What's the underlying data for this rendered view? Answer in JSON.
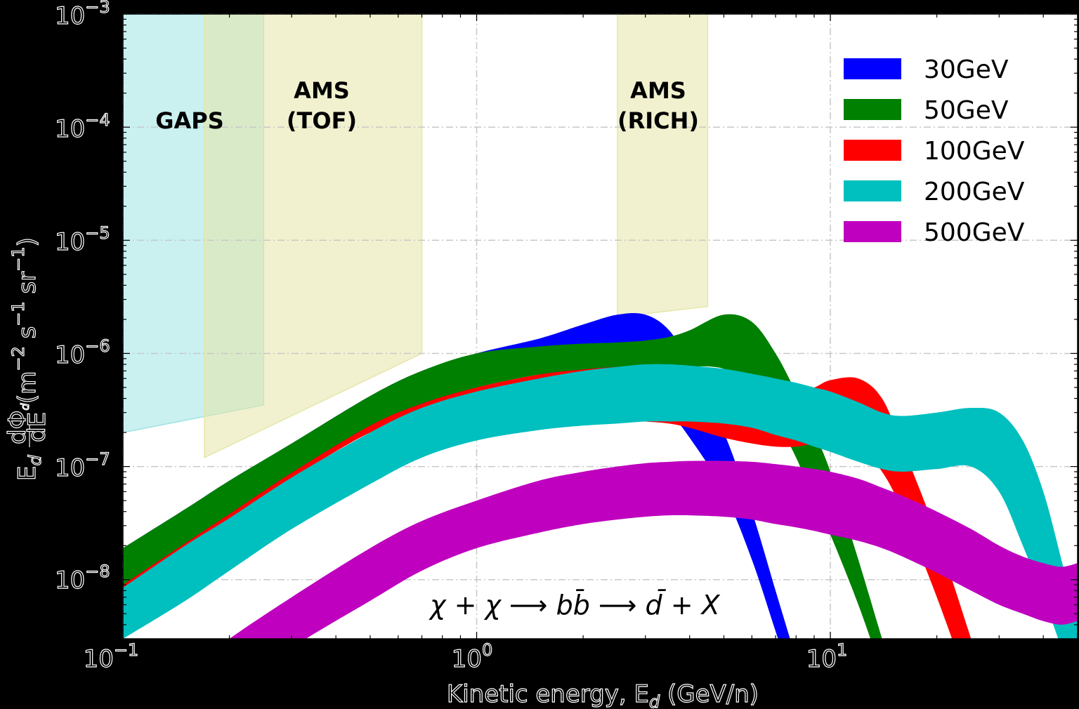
{
  "chart_data": {
    "type": "area",
    "title": "",
    "xlabel": "Kinetic energy, E_d (GeV/n)",
    "ylabel": "E_d dΦ_d/dE (m^-2 s^-1 sr^-1)",
    "xscale": "log",
    "yscale": "log",
    "xlim": [
      0.1,
      50
    ],
    "ylim": [
      3e-09,
      0.001
    ],
    "grid": true,
    "grid_style": "dash-dot",
    "legend_position": "upper right",
    "x_ticks": [
      "10^-1",
      "10^0",
      "10^1"
    ],
    "y_ticks": [
      "10^-8",
      "10^-7",
      "10^-6",
      "10^-5",
      "10^-4",
      "10^-3"
    ],
    "annotation": "χ + χ ⟶ b b̄ ⟶ d̄ + X",
    "regions": [
      {
        "name": "GAPS",
        "label_lines": [
          "GAPS"
        ],
        "color": "#9fe3e3",
        "x": [
          0.1,
          0.25
        ],
        "y_bottom": [
          2e-07,
          3.5e-07
        ]
      },
      {
        "name": "AMS (TOF)",
        "label_lines": [
          "AMS",
          "(TOF)"
        ],
        "color": "#e6e6a8",
        "x": [
          0.17,
          0.7
        ],
        "y_bottom": [
          1.2e-07,
          1e-06
        ]
      },
      {
        "name": "AMS (RICH)",
        "label_lines": [
          "AMS",
          "(RICH)"
        ],
        "color": "#e6e6a8",
        "x": [
          2.5,
          4.5
        ],
        "y_bottom": [
          2.1e-06,
          2.6e-06
        ]
      }
    ],
    "x": [
      0.1,
      0.15,
      0.2,
      0.3,
      0.5,
      0.7,
      1.0,
      1.5,
      2.0,
      2.5,
      3.0,
      3.5,
      4.0,
      5.0,
      6.0,
      7.0,
      8.0,
      9.0,
      10.0,
      12.0,
      14.0,
      16.0,
      20.0,
      25.0,
      30.0,
      35.0,
      40.0,
      45.0,
      50.0
    ],
    "series": [
      {
        "name": "30GeV",
        "color": "#0000ff",
        "upper": [
          1.9e-08,
          4.2e-08,
          7.5e-08,
          1.6e-07,
          4.2e-07,
          7e-07,
          1e-06,
          1.35e-06,
          1.8e-06,
          2.2e-06,
          2.2e-06,
          1.6e-06,
          8e-07,
          2e-07,
          4e-08,
          8e-09,
          2e-09,
          null,
          null,
          null,
          null,
          null,
          null,
          null,
          null,
          null,
          null,
          null,
          null
        ],
        "lower": [
          8e-09,
          1.9e-08,
          3.5e-08,
          8.5e-08,
          2.2e-07,
          3.5e-07,
          5e-07,
          6.5e-07,
          6.3e-07,
          5.5e-07,
          4.3e-07,
          3e-07,
          1.8e-07,
          6e-08,
          1.5e-08,
          3.5e-09,
          1e-09,
          null,
          null,
          null,
          null,
          null,
          null,
          null,
          null,
          null,
          null,
          null,
          null
        ]
      },
      {
        "name": "50GeV",
        "color": "#008000",
        "upper": [
          1.9e-08,
          4.2e-08,
          7.5e-08,
          1.6e-07,
          4.2e-07,
          7e-07,
          1e-06,
          1.15e-06,
          1.22e-06,
          1.25e-06,
          1.3e-06,
          1.4e-06,
          1.6e-06,
          2.2e-06,
          1.9e-06,
          1e-06,
          4.5e-07,
          2e-07,
          9e-08,
          1.5e-08,
          3e-09,
          null,
          null,
          null,
          null,
          null,
          null,
          null,
          null
        ],
        "lower": [
          9e-09,
          2.1e-08,
          3.8e-08,
          8.8e-08,
          2.3e-07,
          3.6e-07,
          5e-07,
          6.5e-07,
          7.2e-07,
          7.6e-07,
          7.8e-07,
          7.8e-07,
          7.7e-07,
          7.3e-07,
          5e-07,
          2.6e-07,
          1.2e-07,
          5e-08,
          2.5e-08,
          6e-09,
          1.5e-09,
          null,
          null,
          null,
          null,
          null,
          null,
          null,
          null
        ]
      },
      {
        "name": "100GeV",
        "color": "#ff0000",
        "upper": [
          9e-09,
          2.1e-08,
          3.8e-08,
          8.8e-08,
          2.3e-07,
          3.6e-07,
          5e-07,
          6.5e-07,
          7.2e-07,
          7.6e-07,
          7.8e-07,
          7.8e-07,
          7.7e-07,
          7e-07,
          6.2e-07,
          5.2e-07,
          4.6e-07,
          5e-07,
          5.8e-07,
          6e-07,
          4e-07,
          1.5e-07,
          2.5e-08,
          3e-09,
          null,
          null,
          null,
          null,
          null
        ],
        "lower": [
          7.5e-09,
          1.8e-08,
          3.3e-08,
          7.8e-08,
          2e-07,
          2.7e-07,
          3.3e-07,
          3.1e-07,
          2.8e-07,
          2.6e-07,
          2.5e-07,
          2.4e-07,
          2.2e-07,
          1.8e-07,
          1.6e-07,
          1.5e-07,
          1.5e-07,
          1.6e-07,
          1.7e-07,
          1.5e-07,
          9e-08,
          4e-08,
          7e-09,
          1e-09,
          null,
          null,
          null,
          null,
          null
        ]
      },
      {
        "name": "200GeV",
        "color": "#00bfbf",
        "upper": [
          8.5e-09,
          2e-08,
          3.5e-08,
          8e-08,
          2e-07,
          3.3e-07,
          4.6e-07,
          6e-07,
          7e-07,
          7.6e-07,
          8e-07,
          8e-07,
          7.8e-07,
          7.3e-07,
          6.6e-07,
          6e-07,
          5.5e-07,
          5e-07,
          4.6e-07,
          3.7e-07,
          3e-07,
          2.8e-07,
          3e-07,
          3.3e-07,
          3e-07,
          1.7e-07,
          6e-08,
          1.5e-08,
          4e-09
        ],
        "lower": [
          3e-09,
          6.5e-09,
          1.2e-08,
          2.8e-08,
          7e-08,
          1.2e-07,
          1.7e-07,
          2.1e-07,
          2.3e-07,
          2.4e-07,
          2.5e-07,
          2.5e-07,
          2.5e-07,
          2.4e-07,
          2.2e-07,
          1.9e-07,
          1.7e-07,
          1.5e-07,
          1.35e-07,
          1.1e-07,
          9.5e-08,
          9e-08,
          9.5e-08,
          1e-07,
          6e-08,
          2e-08,
          7e-09,
          2.5e-09,
          1e-09
        ]
      },
      {
        "name": "500GeV",
        "color": "#bf00bf",
        "upper": [
          null,
          1.5e-09,
          3e-09,
          7e-09,
          1.9e-08,
          3.3e-08,
          5e-08,
          7.5e-08,
          9e-08,
          1e-07,
          1.07e-07,
          1.1e-07,
          1.12e-07,
          1.12e-07,
          1.1e-07,
          1.05e-07,
          1e-07,
          9.5e-08,
          9e-08,
          7.8e-08,
          6.5e-08,
          5.5e-08,
          4e-08,
          2.8e-08,
          2e-08,
          1.6e-08,
          1.4e-08,
          1.3e-08,
          1.4e-08
        ],
        "lower": [
          null,
          null,
          1e-09,
          2.5e-09,
          6.5e-09,
          1.2e-08,
          1.9e-08,
          2.6e-08,
          3.1e-08,
          3.4e-08,
          3.6e-08,
          3.7e-08,
          3.7e-08,
          3.6e-08,
          3.4e-08,
          3.1e-08,
          2.9e-08,
          2.7e-08,
          2.5e-08,
          2.2e-08,
          1.9e-08,
          1.6e-08,
          1.15e-08,
          8e-09,
          6e-09,
          5e-09,
          4.3e-09,
          4e-09,
          4.3e-09
        ]
      }
    ]
  },
  "axes": {
    "x_tick_labels": [
      {
        "base": "10",
        "exp": "−1"
      },
      {
        "base": "10",
        "exp": "0"
      },
      {
        "base": "10",
        "exp": "1"
      }
    ],
    "y_tick_labels": [
      {
        "base": "10",
        "exp": "−3"
      },
      {
        "base": "10",
        "exp": "−4"
      },
      {
        "base": "10",
        "exp": "−5"
      },
      {
        "base": "10",
        "exp": "−6"
      },
      {
        "base": "10",
        "exp": "−7"
      },
      {
        "base": "10",
        "exp": "−8"
      }
    ],
    "xlabel_main": "Kinetic energy, E",
    "xlabel_sub": "d",
    "xlabel_unit": " (GeV/n)",
    "ylabel_E": "E",
    "ylabel_sub": "d",
    "ylabel_num": "dΦ",
    "ylabel_num_sub": "d",
    "ylabel_den": "dE",
    "ylabel_unit": "(m",
    "ylabel_units_rest": [
      "−2",
      " s",
      "−1",
      " sr",
      "−1",
      ")"
    ]
  },
  "annotation": {
    "parts": [
      "χ + χ ⟶ b",
      "b̄",
      " ⟶ ",
      "d̄",
      " + X"
    ]
  },
  "legend": {
    "items": [
      {
        "label": "30GeV",
        "color": "#0000ff"
      },
      {
        "label": "50GeV",
        "color": "#008000"
      },
      {
        "label": "100GeV",
        "color": "#ff0000"
      },
      {
        "label": "200GeV",
        "color": "#00bfbf"
      },
      {
        "label": "500GeV",
        "color": "#bf00bf"
      }
    ]
  }
}
